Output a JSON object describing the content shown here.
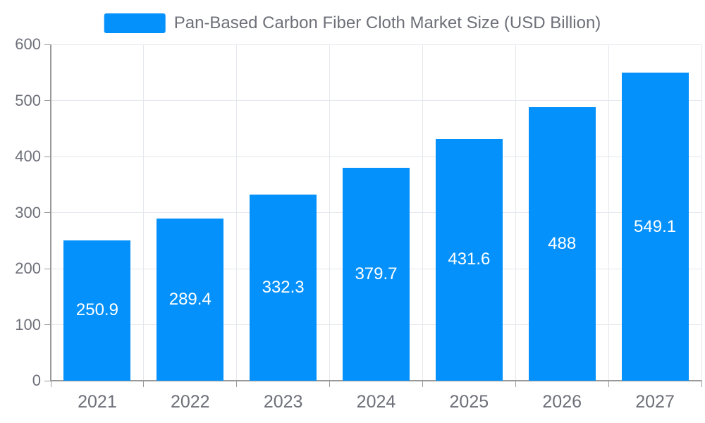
{
  "legend": {
    "label": "Pan-Based Carbon Fiber Cloth Market Size (USD Billion)"
  },
  "chart_data": {
    "type": "bar",
    "title": "Pan-Based Carbon Fiber Cloth Market Size (USD Billion)",
    "categories": [
      "2021",
      "2022",
      "2023",
      "2024",
      "2025",
      "2026",
      "2027"
    ],
    "values": [
      250.9,
      289.4,
      332.3,
      379.7,
      431.6,
      488,
      549.1
    ],
    "value_labels": [
      "250.9",
      "289.4",
      "332.3",
      "379.7",
      "431.6",
      "488",
      "549.1"
    ],
    "xlabel": "",
    "ylabel": "",
    "ylim": [
      0,
      600
    ],
    "yticks": [
      0,
      100,
      200,
      300,
      400,
      500,
      600
    ],
    "grid": true,
    "legend_position": "top-center",
    "colors": {
      "bar": "#0591fb",
      "value_label": "#ffffff",
      "axis_label": "#6e7079",
      "legend_text": "#6e7079",
      "gridline": "#e4e7ec",
      "axis_line": "#999999",
      "background": "#ffffff"
    }
  }
}
